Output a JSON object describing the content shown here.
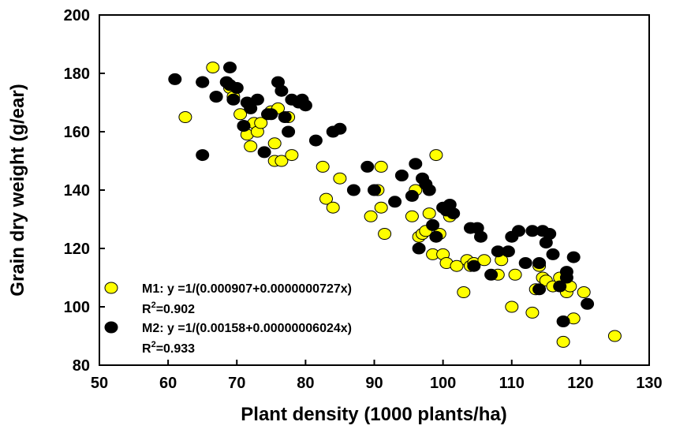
{
  "chart_data": {
    "type": "scatter",
    "xlabel": "Plant density (1000 plants/ha)",
    "ylabel": "Grain dry weight (g/ear)",
    "xlim": [
      50,
      130
    ],
    "ylim": [
      80,
      200
    ],
    "x_ticks": [
      "50",
      "60",
      "70",
      "80",
      "90",
      "100",
      "110",
      "120",
      "130"
    ],
    "y_ticks": [
      "80",
      "100",
      "120",
      "140",
      "160",
      "180",
      "200"
    ],
    "grid": false,
    "legend_position": "bottom-left",
    "colors": {
      "M1": "#ffff00",
      "M2": "#000000",
      "outline": "#000000"
    },
    "series": [
      {
        "name": "M1",
        "equation": "M1: y =1/(0.000907+0.0000000727x)",
        "r2_label": "R",
        "r2_sup": "2",
        "r2_value": "=0.902",
        "fit": {
          "a": 0.000907,
          "b": 7.27e-08,
          "x_range": [
            62.5,
            125
          ]
        },
        "points": [
          [
            62.5,
            165
          ],
          [
            65,
            177
          ],
          [
            66.5,
            182
          ],
          [
            67,
            172
          ],
          [
            69,
            175
          ],
          [
            69.5,
            172
          ],
          [
            70.5,
            166
          ],
          [
            71,
            162
          ],
          [
            71.5,
            159
          ],
          [
            72,
            155
          ],
          [
            72.5,
            163
          ],
          [
            73,
            160
          ],
          [
            73.5,
            163
          ],
          [
            75,
            167
          ],
          [
            75.5,
            156
          ],
          [
            75.5,
            150
          ],
          [
            76,
            168
          ],
          [
            76.5,
            150
          ],
          [
            77.5,
            165
          ],
          [
            78,
            152
          ],
          [
            82.5,
            148
          ],
          [
            83,
            137
          ],
          [
            84,
            134
          ],
          [
            85,
            144
          ],
          [
            89.5,
            131
          ],
          [
            90.5,
            140
          ],
          [
            91,
            148
          ],
          [
            91,
            134
          ],
          [
            91.5,
            125
          ],
          [
            95.5,
            131
          ],
          [
            96,
            140
          ],
          [
            96.5,
            124
          ],
          [
            97,
            125
          ],
          [
            97.5,
            126
          ],
          [
            98,
            132
          ],
          [
            98.5,
            118
          ],
          [
            99,
            152
          ],
          [
            99.5,
            125
          ],
          [
            100,
            118
          ],
          [
            100.5,
            115
          ],
          [
            101,
            131
          ],
          [
            102,
            114
          ],
          [
            103,
            105
          ],
          [
            103.5,
            116
          ],
          [
            104,
            114
          ],
          [
            104.5,
            115
          ],
          [
            106,
            116
          ],
          [
            108,
            111
          ],
          [
            108.5,
            116
          ],
          [
            110,
            100
          ],
          [
            110.5,
            111
          ],
          [
            113,
            98
          ],
          [
            113.5,
            106
          ],
          [
            114,
            114
          ],
          [
            114.5,
            110
          ],
          [
            115,
            109
          ],
          [
            116,
            107
          ],
          [
            117,
            110
          ],
          [
            117.5,
            88
          ],
          [
            118,
            105
          ],
          [
            118.5,
            107
          ],
          [
            119,
            96
          ],
          [
            120.5,
            105
          ],
          [
            125,
            90
          ]
        ]
      },
      {
        "name": "M2",
        "equation": "M2: y =1/(0.00158+0.00000006024x)",
        "r2_label": "R",
        "r2_sup": "2",
        "r2_value": "=0.933",
        "fit": {
          "a": 0.00158,
          "b": 6.024e-08,
          "x_range": [
            61,
            122
          ]
        },
        "points": [
          [
            61,
            178
          ],
          [
            65,
            177
          ],
          [
            65,
            152
          ],
          [
            67,
            172
          ],
          [
            68.5,
            177
          ],
          [
            69,
            182
          ],
          [
            69,
            176
          ],
          [
            69.5,
            171
          ],
          [
            70,
            175
          ],
          [
            71,
            162
          ],
          [
            71.5,
            170
          ],
          [
            72,
            168
          ],
          [
            73,
            171
          ],
          [
            74,
            153
          ],
          [
            74.5,
            166
          ],
          [
            75,
            166
          ],
          [
            76,
            177
          ],
          [
            76.5,
            174
          ],
          [
            77,
            165
          ],
          [
            77.5,
            160
          ],
          [
            78,
            171
          ],
          [
            79,
            170
          ],
          [
            79.5,
            171
          ],
          [
            80,
            169
          ],
          [
            81.5,
            157
          ],
          [
            84,
            160
          ],
          [
            85,
            161
          ],
          [
            87,
            140
          ],
          [
            89,
            148
          ],
          [
            90,
            140
          ],
          [
            93,
            136
          ],
          [
            94,
            145
          ],
          [
            95.5,
            138
          ],
          [
            96,
            149
          ],
          [
            96.5,
            120
          ],
          [
            97,
            144
          ],
          [
            97.5,
            142
          ],
          [
            98,
            140
          ],
          [
            98.5,
            128
          ],
          [
            99,
            124
          ],
          [
            100,
            134
          ],
          [
            100.5,
            133
          ],
          [
            101,
            135
          ],
          [
            101.5,
            132
          ],
          [
            104,
            127
          ],
          [
            104.5,
            114
          ],
          [
            105,
            127
          ],
          [
            105.5,
            124
          ],
          [
            107,
            111
          ],
          [
            108,
            119
          ],
          [
            109.5,
            119
          ],
          [
            110,
            124
          ],
          [
            111,
            126
          ],
          [
            112,
            115
          ],
          [
            113,
            126
          ],
          [
            114,
            115
          ],
          [
            114,
            106
          ],
          [
            114.5,
            126
          ],
          [
            115,
            122
          ],
          [
            115.5,
            125
          ],
          [
            116,
            118
          ],
          [
            117,
            107
          ],
          [
            117.5,
            95
          ],
          [
            118,
            112
          ],
          [
            118,
            110
          ],
          [
            119,
            117
          ],
          [
            121,
            101
          ]
        ]
      }
    ]
  }
}
